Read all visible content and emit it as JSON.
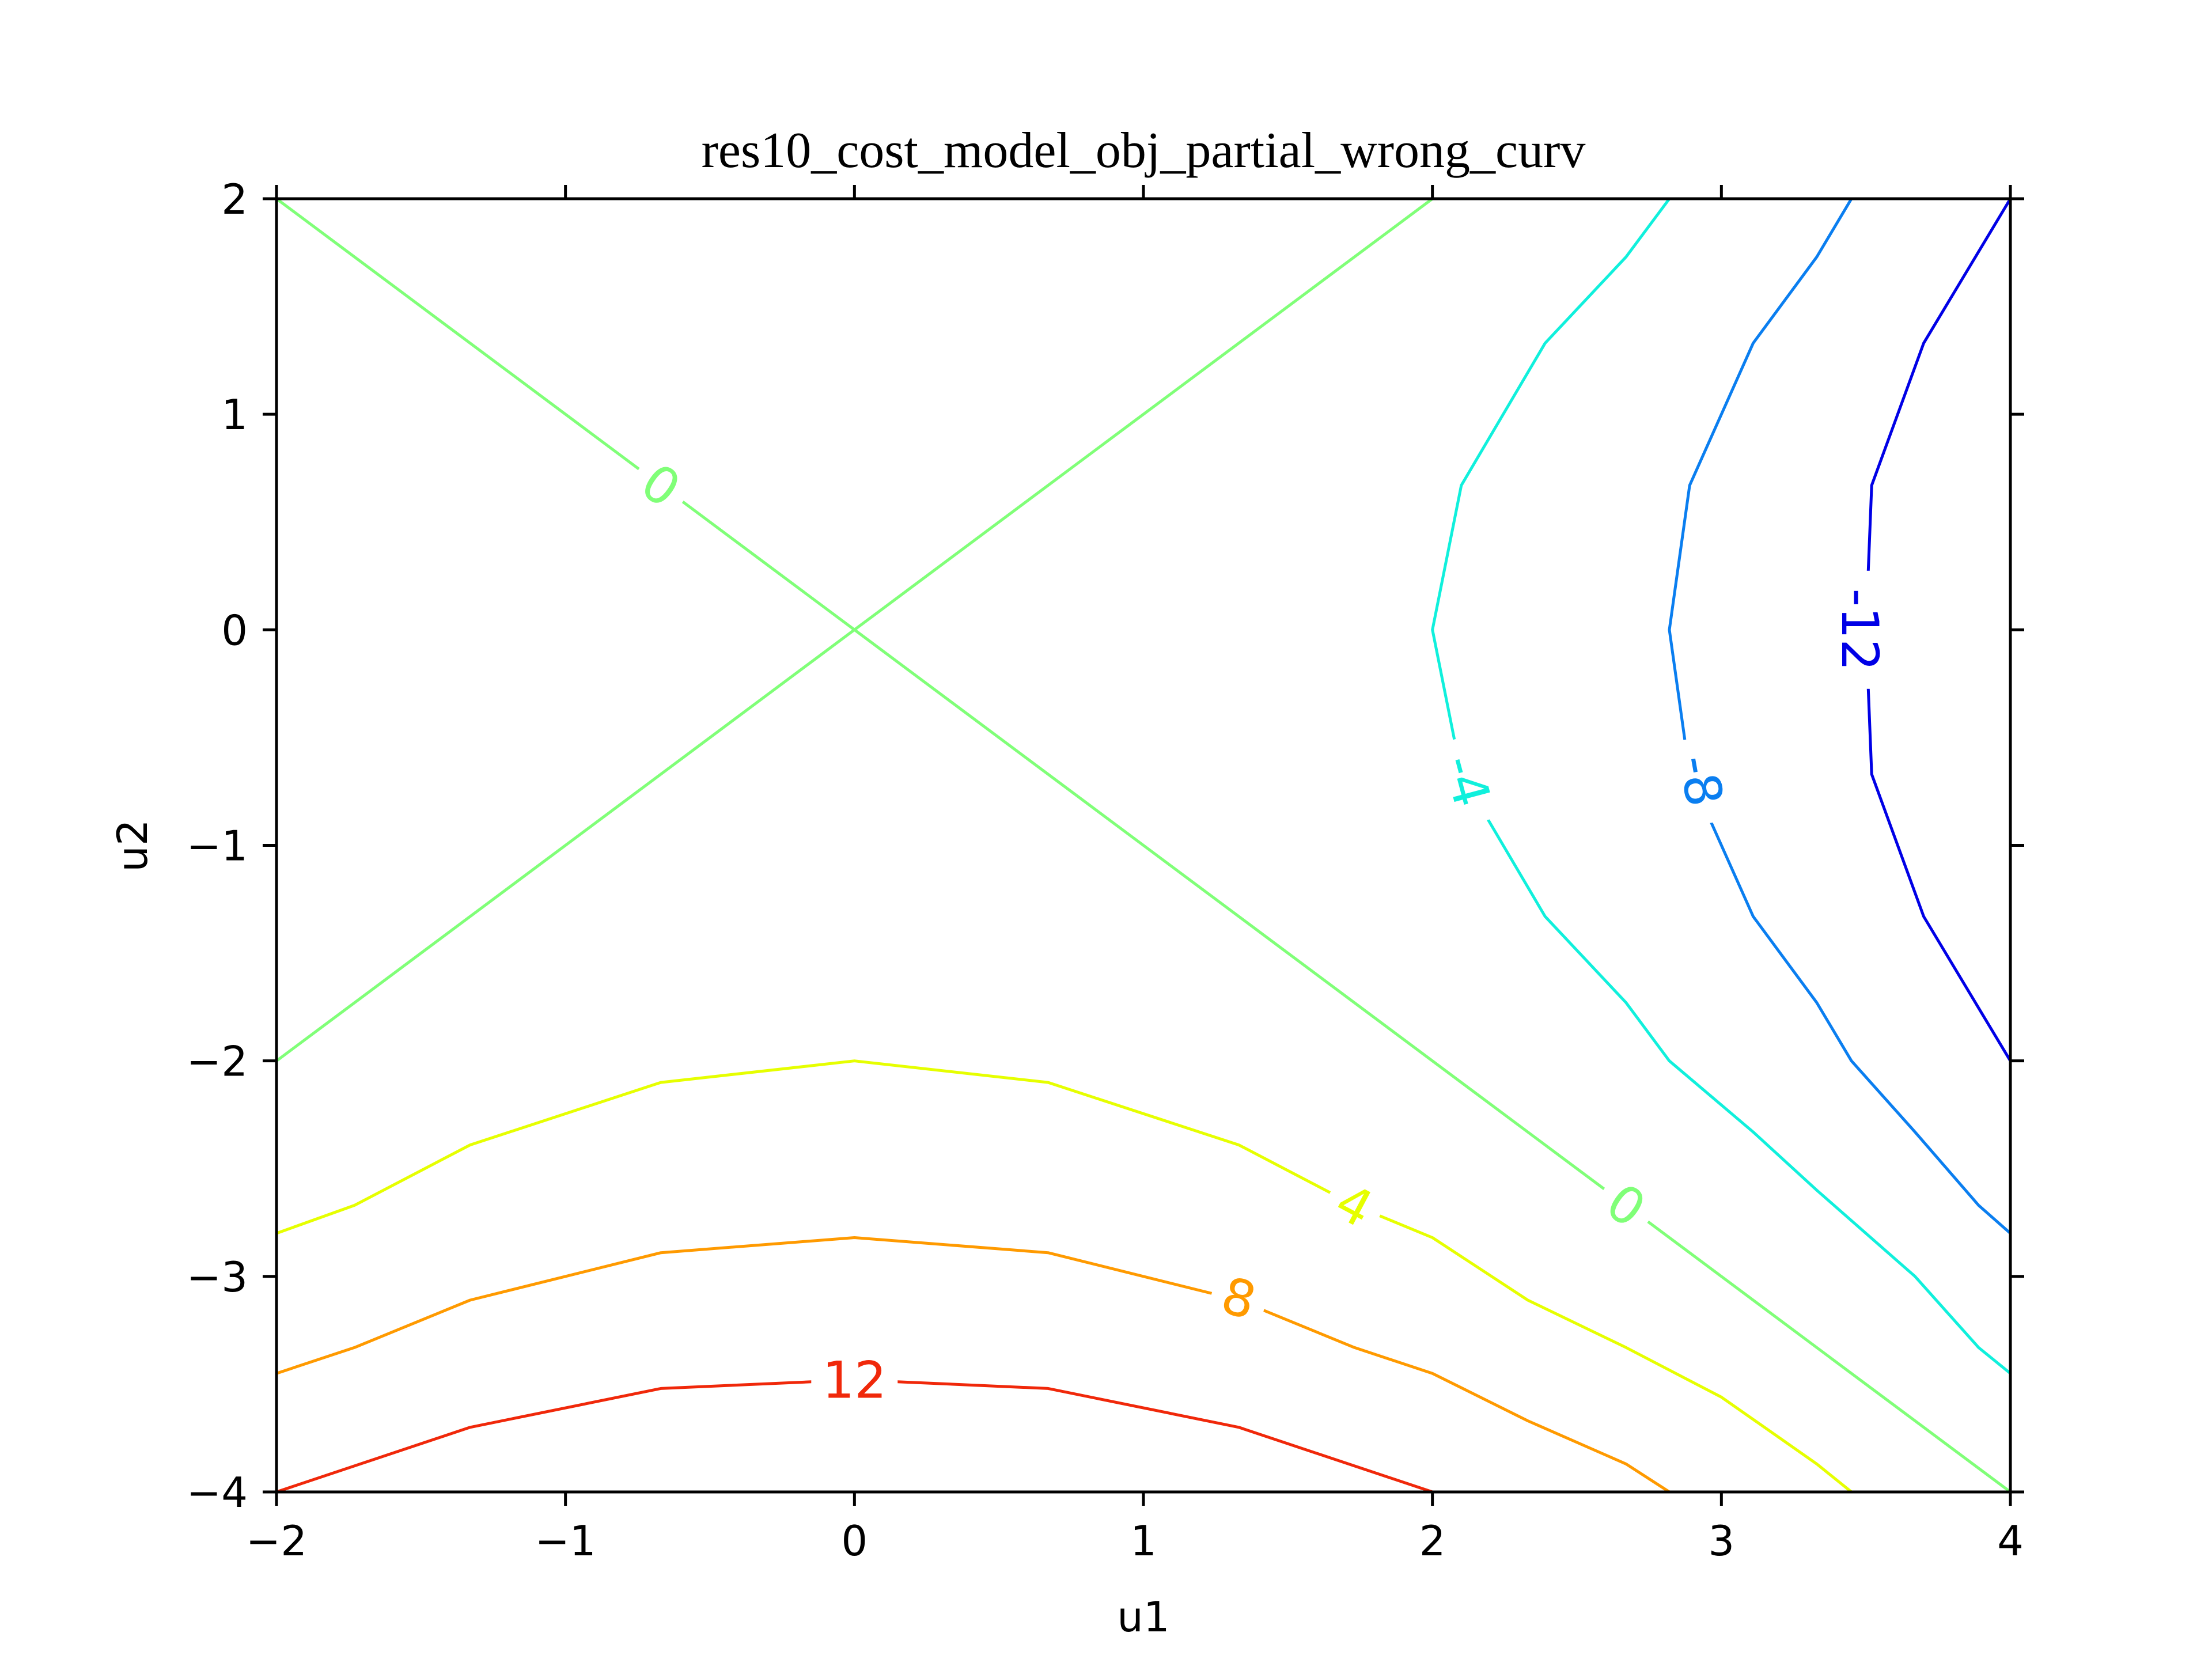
{
  "chart_data": {
    "type": "contour",
    "title": "res10_cost_model_obj_partial_wrong_curv",
    "xlabel": "u1",
    "ylabel": "u2",
    "xlim": [
      -2,
      4
    ],
    "ylim": [
      -4,
      2
    ],
    "x_ticks": [
      -2,
      -1,
      0,
      1,
      2,
      3,
      4
    ],
    "y_ticks": [
      -4,
      -3,
      -2,
      -1,
      0,
      1,
      2
    ],
    "x_tick_labels": [
      "−2",
      "−1",
      "0",
      "1",
      "2",
      "3",
      "4"
    ],
    "y_tick_labels": [
      "−4",
      "−3",
      "−2",
      "−1",
      "0",
      "1",
      "2"
    ],
    "grid": false,
    "colormap": "jet",
    "levels": [
      {
        "level": -12,
        "label": "-12",
        "color": "#0000e6",
        "segments": [
          [
            [
              4,
              2
            ],
            [
              3.7,
              1.33
            ],
            [
              3.52,
              0.67
            ],
            [
              3.5,
              0
            ],
            [
              3.52,
              -0.67
            ],
            [
              3.7,
              -1.33
            ],
            [
              4,
              -2
            ]
          ]
        ],
        "labels": [
          {
            "text": "-12",
            "x": 3.48,
            "y": 0,
            "angle": 90
          }
        ]
      },
      {
        "level": -8,
        "label": "-8",
        "color": "#0a7ef0",
        "segments": [
          [
            [
              3.45,
              2
            ],
            [
              3.33,
              1.73
            ],
            [
              3.11,
              1.33
            ],
            [
              2.89,
              0.67
            ],
            [
              2.82,
              0
            ],
            [
              2.89,
              -0.67
            ],
            [
              3.11,
              -1.33
            ],
            [
              3.33,
              -1.73
            ],
            [
              3.45,
              -2
            ],
            [
              3.67,
              -2.33
            ],
            [
              3.89,
              -2.67
            ],
            [
              4,
              -2.8
            ]
          ]
        ],
        "labels": [
          {
            "text": "-8",
            "x": 2.93,
            "y": -0.7,
            "angle": 80
          }
        ]
      },
      {
        "level": -4,
        "label": "-4",
        "color": "#10f0dc",
        "segments": [
          [
            [
              2.82,
              2
            ],
            [
              2.67,
              1.73
            ],
            [
              2.39,
              1.33
            ],
            [
              2.1,
              0.67
            ],
            [
              2.0,
              0
            ],
            [
              2.1,
              -0.67
            ],
            [
              2.39,
              -1.33
            ],
            [
              2.67,
              -1.73
            ],
            [
              2.82,
              -2
            ],
            [
              3.11,
              -2.33
            ],
            [
              3.33,
              -2.6
            ],
            [
              3.67,
              -3
            ],
            [
              3.89,
              -3.33
            ],
            [
              4,
              -3.45
            ]
          ]
        ],
        "labels": [
          {
            "text": "-4",
            "x": 2.12,
            "y": -0.7,
            "angle": 75
          }
        ]
      },
      {
        "level": 0,
        "label": "0",
        "color": "#80ff78",
        "segments": [
          [
            [
              -2,
              2
            ],
            [
              0,
              0
            ],
            [
              2.67,
              -2.67
            ],
            [
              4,
              -4
            ]
          ],
          [
            [
              -2,
              -2
            ],
            [
              0,
              0
            ],
            [
              2,
              2
            ]
          ]
        ],
        "labels": [
          {
            "text": "0",
            "x": -0.67,
            "y": 0.67,
            "angle": 35
          },
          {
            "text": "0",
            "x": 2.67,
            "y": -2.67,
            "angle": 35
          }
        ]
      },
      {
        "level": 4,
        "label": "4",
        "color": "#e6ff00",
        "segments": [
          [
            [
              -2,
              -2.8
            ],
            [
              -1.73,
              -2.67
            ],
            [
              -1.33,
              -2.39
            ],
            [
              -0.67,
              -2.1
            ],
            [
              0,
              -2.0
            ],
            [
              0.67,
              -2.1
            ],
            [
              1.33,
              -2.39
            ],
            [
              1.73,
              -2.67
            ],
            [
              2,
              -2.82
            ],
            [
              2.33,
              -3.11
            ],
            [
              2.67,
              -3.33
            ],
            [
              3,
              -3.56
            ],
            [
              3.33,
              -3.87
            ],
            [
              3.45,
              -4
            ]
          ]
        ],
        "labels": [
          {
            "text": "4",
            "x": 1.73,
            "y": -2.67,
            "angle": 28
          }
        ]
      },
      {
        "level": 8,
        "label": "8",
        "color": "#ff9a00",
        "segments": [
          [
            [
              -2,
              -3.45
            ],
            [
              -1.73,
              -3.33
            ],
            [
              -1.33,
              -3.11
            ],
            [
              -0.67,
              -2.89
            ],
            [
              0,
              -2.82
            ],
            [
              0.67,
              -2.89
            ],
            [
              1.33,
              -3.11
            ],
            [
              1.73,
              -3.33
            ],
            [
              2,
              -3.45
            ],
            [
              2.33,
              -3.67
            ],
            [
              2.67,
              -3.87
            ],
            [
              2.82,
              -4
            ]
          ]
        ],
        "labels": [
          {
            "text": "8",
            "x": 1.33,
            "y": -3.1,
            "angle": 16
          }
        ]
      },
      {
        "level": 12,
        "label": "12",
        "color": "#f0280a",
        "segments": [
          [
            [
              -2,
              -4
            ],
            [
              -1.33,
              -3.7
            ],
            [
              -0.67,
              -3.52
            ],
            [
              0,
              -3.48
            ],
            [
              0.67,
              -3.52
            ],
            [
              1.33,
              -3.7
            ],
            [
              2,
              -4
            ]
          ]
        ],
        "labels": [
          {
            "text": "12",
            "x": 0,
            "y": -3.48,
            "angle": 0
          }
        ]
      }
    ]
  }
}
